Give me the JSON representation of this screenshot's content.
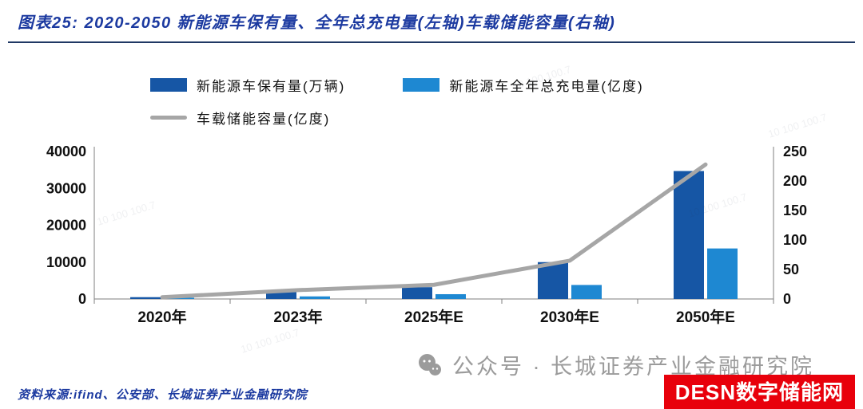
{
  "header": {
    "title": "图表25: 2020-2050 新能源车保有量、全年总充电量(左轴)车载储能容量(右轴)"
  },
  "legend": [
    {
      "label": "新能源车保有量(万辆)",
      "swatch": "rect",
      "color": "#1656A5"
    },
    {
      "label": "新能源车全年总充电量(亿度)",
      "swatch": "rect",
      "color": "#1E88D2"
    },
    {
      "label": "车载储能容量(亿度)",
      "swatch": "line",
      "color": "#A6A6A6"
    }
  ],
  "chart_data": {
    "type": "bar",
    "title": "2020-2050 新能源车保有量、全年总充电量(左轴)车载储能容量(右轴)",
    "categories": [
      "2020年",
      "2023年",
      "2025年E",
      "2030年E",
      "2050年E"
    ],
    "series": [
      {
        "name": "新能源车保有量(万辆)",
        "type": "bar",
        "axis": "left",
        "color": "#1656A5",
        "values": [
          492,
          2041,
          3200,
          10000,
          34700
        ]
      },
      {
        "name": "新能源车全年总充电量(亿度)",
        "type": "bar",
        "axis": "left",
        "color": "#1E88D2",
        "values": [
          100,
          700,
          1300,
          3800,
          13700
        ]
      },
      {
        "name": "车载储能容量(亿度)",
        "type": "line",
        "axis": "right",
        "color": "#A6A6A6",
        "values": [
          3,
          15,
          24,
          65,
          228
        ]
      }
    ],
    "left_axis": {
      "range": [
        0,
        40000
      ],
      "ticks": [
        0,
        10000,
        20000,
        30000,
        40000
      ]
    },
    "right_axis": {
      "range": [
        0,
        250
      ],
      "ticks": [
        0,
        50,
        100,
        150,
        200,
        250
      ]
    },
    "grid": false,
    "legend_position": "top"
  },
  "footer": {
    "source": "资料来源:ifind、公安部、长城证券产业金融研究院",
    "watermark": "公众号 · 长城证券产业金融研究院",
    "badge": "DESN数字储能网"
  },
  "watermark": {
    "diagonal": "10 100 100.7"
  },
  "colors": {
    "title_blue": "#1C3AA0",
    "divider_navy": "#1F3864",
    "bar_dark": "#1656A5",
    "bar_light": "#1E88D2",
    "line_gray": "#A6A6A6",
    "badge_red": "#E8000B",
    "watermark_gray": "#9B9B9B"
  }
}
